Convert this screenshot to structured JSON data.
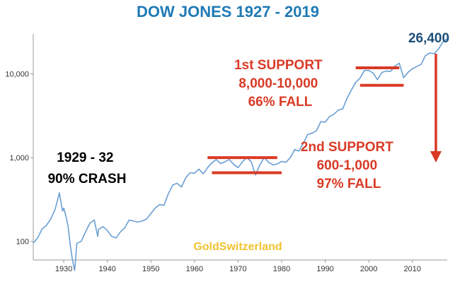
{
  "chart_data": {
    "type": "line",
    "title": "DOW JONES 1927 - 2019",
    "xlabel": "",
    "ylabel": "",
    "y_scale": "log",
    "x_range": [
      1923,
      2018
    ],
    "y_range": [
      60,
      30000
    ],
    "x_ticks": [
      1930,
      1940,
      1950,
      1960,
      1970,
      1980,
      1990,
      2000,
      2010
    ],
    "y_ticks": [
      {
        "value": 100,
        "label": "100"
      },
      {
        "value": 1000,
        "label": "1,000"
      },
      {
        "value": 10000,
        "label": "10,000"
      }
    ],
    "grid": false,
    "line_color": "#6a9fd3",
    "series": [
      {
        "x": [
          1923,
          1924,
          1925,
          1926,
          1927,
          1928,
          1928.5,
          1929,
          1929.7,
          1930,
          1930.5,
          1931,
          1931.5,
          1932,
          1932.5,
          1933,
          1934,
          1935,
          1936,
          1937,
          1937.8,
          1938,
          1939,
          1940,
          1941,
          1942,
          1943,
          1944,
          1945,
          1946,
          1947,
          1948,
          1949,
          1950,
          1951,
          1952,
          1953,
          1954,
          1955,
          1956,
          1957,
          1958,
          1959,
          1960,
          1961,
          1962,
          1963,
          1964,
          1965,
          1966,
          1967,
          1968,
          1969,
          1970,
          1971,
          1972,
          1973,
          1974,
          1975,
          1976,
          1977,
          1978,
          1979,
          1980,
          1981,
          1982,
          1983,
          1984,
          1985,
          1986,
          1987,
          1988,
          1989,
          1990,
          1991,
          1992,
          1993,
          1994,
          1995,
          1996,
          1997,
          1998,
          1999,
          2000,
          2001,
          2002,
          2003,
          2004,
          2005,
          2006,
          2007,
          2008,
          2009,
          2010,
          2011,
          2012,
          2013,
          2014,
          2015,
          2016,
          2017,
          2018
        ],
        "y": [
          95,
          110,
          140,
          155,
          185,
          240,
          300,
          380,
          230,
          250,
          200,
          150,
          90,
          60,
          45,
          95,
          100,
          130,
          165,
          180,
          115,
          140,
          150,
          135,
          115,
          110,
          130,
          145,
          180,
          175,
          170,
          175,
          185,
          215,
          250,
          275,
          270,
          370,
          470,
          495,
          445,
          575,
          660,
          650,
          730,
          640,
          760,
          870,
          950,
          850,
          890,
          950,
          830,
          760,
          890,
          1000,
          900,
          620,
          820,
          1000,
          880,
          820,
          840,
          900,
          880,
          1000,
          1250,
          1200,
          1500,
          1900,
          1950,
          2100,
          2700,
          2650,
          3100,
          3300,
          3700,
          3800,
          5100,
          6400,
          7900,
          8900,
          11000,
          11000,
          10200,
          8500,
          10400,
          10800,
          10700,
          12400,
          13400,
          9000,
          10400,
          11500,
          12200,
          13000,
          16500,
          17800,
          17400,
          19800,
          24000,
          26400
        ]
      }
    ],
    "end_label": "26,400",
    "annotations": [
      {
        "id": "crash",
        "color": "#000000",
        "lines": [
          "1929 - 32",
          "90% CRASH"
        ]
      },
      {
        "id": "support1",
        "color": "#d93a26",
        "lines": [
          "1st SUPPORT",
          "8,000-10,000",
          "66% FALL"
        ]
      },
      {
        "id": "support2",
        "color": "#d93a26",
        "lines": [
          "2nd SUPPORT",
          "600-1,000",
          "97% FALL"
        ]
      }
    ],
    "support_lines": [
      {
        "x_start": 1963,
        "x_end": 1979,
        "y": 1000
      },
      {
        "x_start": 1964,
        "x_end": 1980,
        "y": 660
      },
      {
        "x_start": 1997,
        "x_end": 2007,
        "y": 11800
      },
      {
        "x_start": 1998,
        "x_end": 2008,
        "y": 7300
      }
    ],
    "watermark": "GoldSwitzerland",
    "colors": {
      "title": "#1f7ab5",
      "end_label": "#1c4e7a",
      "support": "#d93a26",
      "watermark": "#f2c230"
    }
  }
}
